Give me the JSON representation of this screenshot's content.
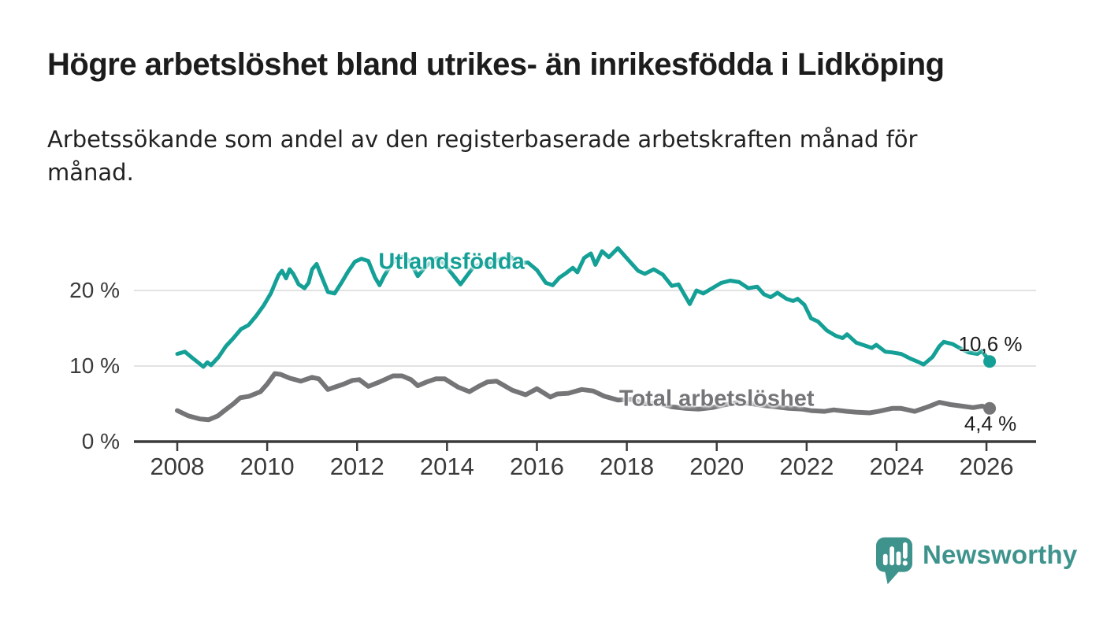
{
  "page": {
    "title": "Högre arbetslöshet bland utrikes- än inrikesfödda i Lidköping",
    "subtitle_line1": "Arbetssökande som andel av den registerbaserade arbetskraften månad för",
    "subtitle_line2": "månad."
  },
  "branding": {
    "logo_text": "Newsworthy",
    "logo_icon": "speech-bubble-bar-chart-icon",
    "logo_color": "#3e948d"
  },
  "colors": {
    "axis": "#3b3b3b",
    "gridline": "#d8d8d8",
    "value_label": "#1c1c1c",
    "background": "#ffffff"
  },
  "chart_data": {
    "type": "line",
    "title": "Högre arbetslöshet bland utrikes- än inrikesfödda i Lidköping",
    "xlabel": "",
    "ylabel": "",
    "unit": "%",
    "grid": "horizontal",
    "legend_position": "inline-labels",
    "x_range": [
      2007.9,
      2027.0
    ],
    "y_range": [
      0,
      27
    ],
    "x_ticks": [
      {
        "value": 2008,
        "label": "2008"
      },
      {
        "value": 2010,
        "label": "2010"
      },
      {
        "value": 2012,
        "label": "2012"
      },
      {
        "value": 2014,
        "label": "2014"
      },
      {
        "value": 2016,
        "label": "2016"
      },
      {
        "value": 2018,
        "label": "2018"
      },
      {
        "value": 2020,
        "label": "2020"
      },
      {
        "value": 2022,
        "label": "2022"
      },
      {
        "value": 2024,
        "label": "2024"
      },
      {
        "value": 2026,
        "label": "2026"
      }
    ],
    "y_ticks": [
      {
        "value": 0,
        "label": "0 %"
      },
      {
        "value": 10,
        "label": "10 %"
      },
      {
        "value": 20,
        "label": "20 %"
      }
    ],
    "series": [
      {
        "name": "Utlandsfödda",
        "color": "#14a096",
        "line_width": 5,
        "label_anchor": {
          "x": 2014.1,
          "y": 23.8
        },
        "end_value": 10.6,
        "end_value_label": "10,6 %",
        "end_label_side": "above",
        "points": [
          [
            2008.0,
            11.6
          ],
          [
            2008.17,
            11.9
          ],
          [
            2008.33,
            11.1
          ],
          [
            2008.5,
            10.3
          ],
          [
            2008.58,
            9.9
          ],
          [
            2008.67,
            10.5
          ],
          [
            2008.75,
            10.1
          ],
          [
            2008.92,
            11.2
          ],
          [
            2009.08,
            12.6
          ],
          [
            2009.25,
            13.7
          ],
          [
            2009.42,
            14.9
          ],
          [
            2009.58,
            15.4
          ],
          [
            2009.75,
            16.6
          ],
          [
            2009.92,
            18.0
          ],
          [
            2010.08,
            19.6
          ],
          [
            2010.25,
            22.0
          ],
          [
            2010.33,
            22.6
          ],
          [
            2010.42,
            21.6
          ],
          [
            2010.5,
            22.8
          ],
          [
            2010.58,
            22.2
          ],
          [
            2010.7,
            20.8
          ],
          [
            2010.83,
            20.3
          ],
          [
            2010.92,
            21.0
          ],
          [
            2011.0,
            22.8
          ],
          [
            2011.1,
            23.5
          ],
          [
            2011.2,
            22.0
          ],
          [
            2011.35,
            19.8
          ],
          [
            2011.5,
            19.6
          ],
          [
            2011.65,
            21.0
          ],
          [
            2011.8,
            22.5
          ],
          [
            2011.95,
            23.8
          ],
          [
            2012.1,
            24.2
          ],
          [
            2012.25,
            23.9
          ],
          [
            2012.4,
            21.7
          ],
          [
            2012.5,
            20.7
          ],
          [
            2012.6,
            21.9
          ],
          [
            2012.75,
            23.4
          ],
          [
            2012.9,
            24.3
          ],
          [
            2013.05,
            24.5
          ],
          [
            2013.2,
            23.6
          ],
          [
            2013.35,
            21.9
          ],
          [
            2013.5,
            23.0
          ],
          [
            2013.65,
            23.9
          ],
          [
            2013.8,
            24.3
          ],
          [
            2013.95,
            23.4
          ],
          [
            2014.1,
            22.3
          ],
          [
            2014.3,
            20.8
          ],
          [
            2014.45,
            22.0
          ],
          [
            2014.6,
            23.2
          ],
          [
            2014.8,
            23.5
          ],
          [
            2015.0,
            23.6
          ],
          [
            2015.2,
            24.2
          ],
          [
            2015.4,
            24.5
          ],
          [
            2015.6,
            23.6
          ],
          [
            2015.8,
            23.7
          ],
          [
            2016.0,
            22.7
          ],
          [
            2016.2,
            21.0
          ],
          [
            2016.35,
            20.7
          ],
          [
            2016.5,
            21.7
          ],
          [
            2016.65,
            22.3
          ],
          [
            2016.8,
            23.0
          ],
          [
            2016.9,
            22.4
          ],
          [
            2017.05,
            24.3
          ],
          [
            2017.2,
            24.9
          ],
          [
            2017.3,
            23.4
          ],
          [
            2017.45,
            25.2
          ],
          [
            2017.6,
            24.4
          ],
          [
            2017.8,
            25.6
          ],
          [
            2017.95,
            24.6
          ],
          [
            2018.1,
            23.6
          ],
          [
            2018.25,
            22.6
          ],
          [
            2018.4,
            22.2
          ],
          [
            2018.6,
            22.8
          ],
          [
            2018.8,
            22.1
          ],
          [
            2019.0,
            20.6
          ],
          [
            2019.15,
            20.8
          ],
          [
            2019.4,
            18.2
          ],
          [
            2019.55,
            20.0
          ],
          [
            2019.7,
            19.6
          ],
          [
            2019.9,
            20.3
          ],
          [
            2020.1,
            21.0
          ],
          [
            2020.3,
            21.3
          ],
          [
            2020.5,
            21.1
          ],
          [
            2020.7,
            20.3
          ],
          [
            2020.9,
            20.5
          ],
          [
            2021.05,
            19.5
          ],
          [
            2021.2,
            19.1
          ],
          [
            2021.35,
            19.7
          ],
          [
            2021.55,
            18.9
          ],
          [
            2021.7,
            18.6
          ],
          [
            2021.8,
            18.9
          ],
          [
            2021.95,
            18.1
          ],
          [
            2022.1,
            16.3
          ],
          [
            2022.25,
            15.9
          ],
          [
            2022.45,
            14.7
          ],
          [
            2022.65,
            14.0
          ],
          [
            2022.8,
            13.7
          ],
          [
            2022.9,
            14.2
          ],
          [
            2023.1,
            13.1
          ],
          [
            2023.25,
            12.8
          ],
          [
            2023.45,
            12.4
          ],
          [
            2023.55,
            12.8
          ],
          [
            2023.75,
            11.9
          ],
          [
            2023.9,
            11.8
          ],
          [
            2024.1,
            11.6
          ],
          [
            2024.3,
            11.0
          ],
          [
            2024.5,
            10.5
          ],
          [
            2024.6,
            10.2
          ],
          [
            2024.8,
            11.2
          ],
          [
            2024.95,
            12.6
          ],
          [
            2025.05,
            13.2
          ],
          [
            2025.25,
            12.9
          ],
          [
            2025.4,
            12.4
          ],
          [
            2025.6,
            11.8
          ],
          [
            2025.8,
            11.6
          ],
          [
            2025.9,
            12.0
          ],
          [
            2026.0,
            11.2
          ],
          [
            2026.07,
            10.6
          ]
        ]
      },
      {
        "name": "Total arbetslöshet",
        "color": "#757578",
        "line_width": 6,
        "label_anchor": {
          "x": 2020.0,
          "y": 5.6
        },
        "end_value": 4.4,
        "end_value_label": "4,4 %",
        "end_label_side": "below",
        "points": [
          [
            2008.0,
            4.1
          ],
          [
            2008.25,
            3.4
          ],
          [
            2008.5,
            3.0
          ],
          [
            2008.7,
            2.9
          ],
          [
            2008.9,
            3.4
          ],
          [
            2009.05,
            4.1
          ],
          [
            2009.25,
            5.0
          ],
          [
            2009.4,
            5.8
          ],
          [
            2009.6,
            6.0
          ],
          [
            2009.85,
            6.6
          ],
          [
            2010.0,
            7.6
          ],
          [
            2010.17,
            9.0
          ],
          [
            2010.3,
            8.9
          ],
          [
            2010.5,
            8.4
          ],
          [
            2010.75,
            8.0
          ],
          [
            2011.0,
            8.5
          ],
          [
            2011.15,
            8.3
          ],
          [
            2011.35,
            6.9
          ],
          [
            2011.5,
            7.2
          ],
          [
            2011.7,
            7.6
          ],
          [
            2011.9,
            8.1
          ],
          [
            2012.05,
            8.2
          ],
          [
            2012.25,
            7.3
          ],
          [
            2012.5,
            7.9
          ],
          [
            2012.8,
            8.7
          ],
          [
            2013.0,
            8.7
          ],
          [
            2013.2,
            8.2
          ],
          [
            2013.35,
            7.4
          ],
          [
            2013.55,
            7.9
          ],
          [
            2013.75,
            8.3
          ],
          [
            2013.95,
            8.3
          ],
          [
            2014.25,
            7.2
          ],
          [
            2014.5,
            6.6
          ],
          [
            2014.7,
            7.3
          ],
          [
            2014.9,
            7.9
          ],
          [
            2015.1,
            8.0
          ],
          [
            2015.45,
            6.8
          ],
          [
            2015.75,
            6.2
          ],
          [
            2016.0,
            7.0
          ],
          [
            2016.3,
            5.9
          ],
          [
            2016.45,
            6.3
          ],
          [
            2016.7,
            6.4
          ],
          [
            2017.0,
            6.9
          ],
          [
            2017.25,
            6.7
          ],
          [
            2017.5,
            6.0
          ],
          [
            2017.8,
            5.5
          ],
          [
            2018.1,
            5.6
          ],
          [
            2018.4,
            5.0
          ],
          [
            2018.7,
            5.1
          ],
          [
            2019.0,
            4.6
          ],
          [
            2019.3,
            4.4
          ],
          [
            2019.6,
            4.3
          ],
          [
            2019.9,
            4.5
          ],
          [
            2020.2,
            4.9
          ],
          [
            2020.5,
            5.2
          ],
          [
            2020.8,
            5.0
          ],
          [
            2021.0,
            4.8
          ],
          [
            2021.3,
            4.6
          ],
          [
            2021.6,
            4.4
          ],
          [
            2021.9,
            4.3
          ],
          [
            2022.1,
            4.1
          ],
          [
            2022.4,
            4.0
          ],
          [
            2022.6,
            4.2
          ],
          [
            2022.9,
            4.0
          ],
          [
            2023.1,
            3.9
          ],
          [
            2023.4,
            3.8
          ],
          [
            2023.6,
            4.0
          ],
          [
            2023.9,
            4.4
          ],
          [
            2024.1,
            4.4
          ],
          [
            2024.4,
            4.0
          ],
          [
            2024.7,
            4.6
          ],
          [
            2024.95,
            5.2
          ],
          [
            2025.2,
            4.9
          ],
          [
            2025.45,
            4.7
          ],
          [
            2025.7,
            4.5
          ],
          [
            2025.9,
            4.7
          ],
          [
            2026.07,
            4.4
          ]
        ]
      }
    ]
  }
}
